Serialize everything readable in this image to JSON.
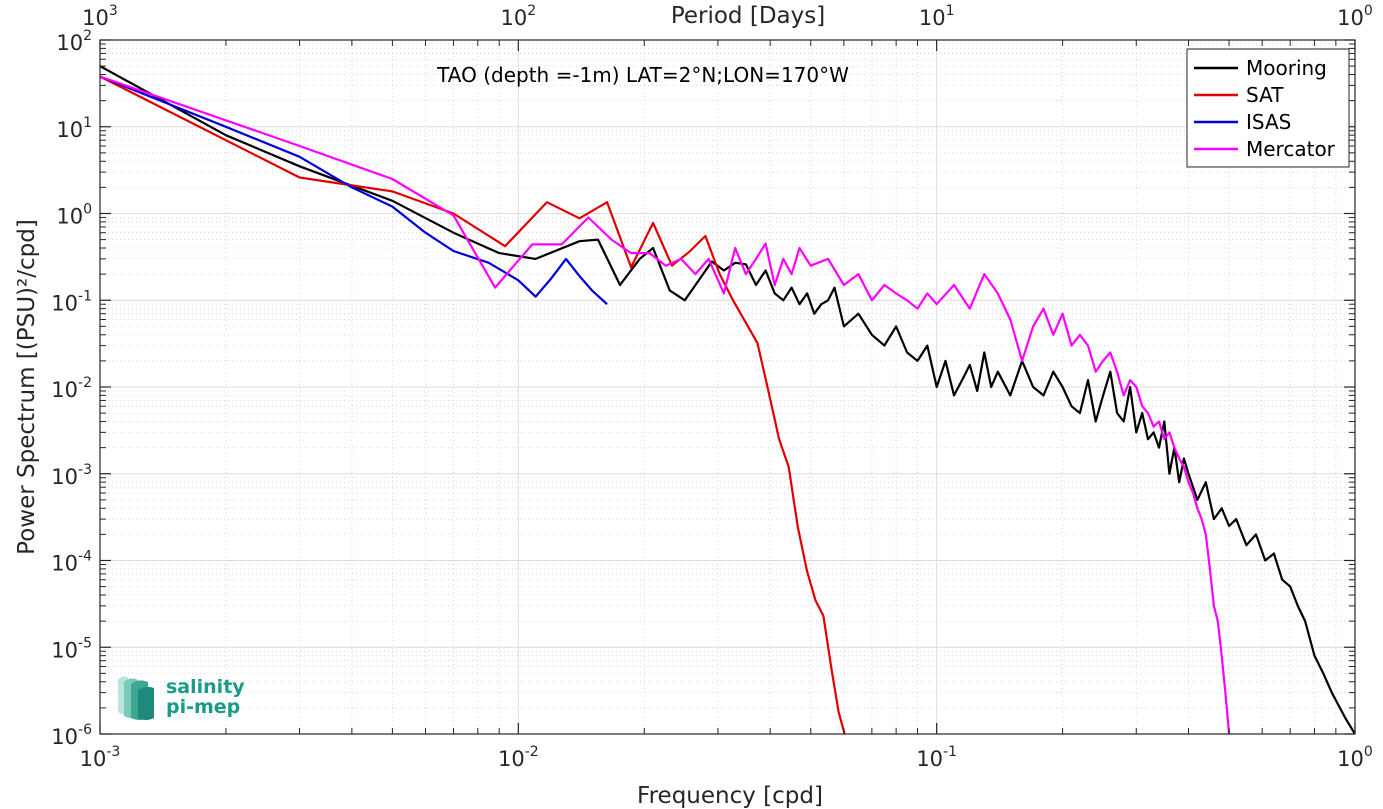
{
  "chart_data": {
    "type": "line",
    "title": "TAO (depth =-1m) LAT=2°N;LON=170°W",
    "xlabel": "Frequency [cpd]",
    "ylabel": "Power Spectrum [(PSU)²/cpd]",
    "top_xlabel": "Period [Days]",
    "xscale": "log",
    "yscale": "log",
    "xlim": [
      0.001,
      1
    ],
    "ylim": [
      1e-06,
      100
    ],
    "grid": true,
    "legend_position": "top-right",
    "x_ticks": [
      {
        "base": "10",
        "exp": "-3"
      },
      {
        "base": "10",
        "exp": "-2"
      },
      {
        "base": "10",
        "exp": "-1"
      },
      {
        "base": "10",
        "exp": "0"
      }
    ],
    "y_ticks": [
      {
        "base": "10",
        "exp": "-6"
      },
      {
        "base": "10",
        "exp": "-5"
      },
      {
        "base": "10",
        "exp": "-4"
      },
      {
        "base": "10",
        "exp": "-3"
      },
      {
        "base": "10",
        "exp": "-2"
      },
      {
        "base": "10",
        "exp": "-1"
      },
      {
        "base": "10",
        "exp": "0"
      },
      {
        "base": "10",
        "exp": "1"
      },
      {
        "base": "10",
        "exp": "2"
      }
    ],
    "top_ticks": [
      {
        "base": "10",
        "exp": "3"
      },
      {
        "base": "10",
        "exp": "2"
      },
      {
        "base": "10",
        "exp": "1"
      },
      {
        "base": "10",
        "exp": "0"
      }
    ],
    "series": [
      {
        "name": "Mooring",
        "color": "#000000",
        "x": [
          0.001,
          0.002,
          0.003,
          0.005,
          0.007,
          0.009,
          0.011,
          0.014,
          0.0155,
          0.0175,
          0.0195,
          0.021,
          0.023,
          0.025,
          0.027,
          0.029,
          0.031,
          0.033,
          0.035,
          0.037,
          0.039,
          0.041,
          0.043,
          0.045,
          0.047,
          0.049,
          0.051,
          0.053,
          0.055,
          0.057,
          0.06,
          0.065,
          0.07,
          0.075,
          0.08,
          0.085,
          0.09,
          0.095,
          0.1,
          0.105,
          0.11,
          0.115,
          0.12,
          0.125,
          0.13,
          0.135,
          0.14,
          0.15,
          0.16,
          0.17,
          0.18,
          0.19,
          0.2,
          0.21,
          0.22,
          0.23,
          0.24,
          0.25,
          0.26,
          0.27,
          0.28,
          0.29,
          0.3,
          0.31,
          0.32,
          0.33,
          0.34,
          0.35,
          0.36,
          0.37,
          0.38,
          0.39,
          0.4,
          0.42,
          0.44,
          0.46,
          0.48,
          0.5,
          0.52,
          0.55,
          0.58,
          0.61,
          0.64,
          0.67,
          0.7,
          0.73,
          0.76,
          0.8,
          0.84,
          0.88,
          0.92,
          0.95,
          1.0
        ],
        "y": [
          50,
          8,
          3.5,
          1.4,
          0.6,
          0.35,
          0.3,
          0.48,
          0.5,
          0.15,
          0.3,
          0.4,
          0.13,
          0.1,
          0.17,
          0.28,
          0.22,
          0.27,
          0.26,
          0.15,
          0.22,
          0.12,
          0.1,
          0.14,
          0.09,
          0.12,
          0.07,
          0.09,
          0.1,
          0.14,
          0.05,
          0.07,
          0.04,
          0.03,
          0.05,
          0.025,
          0.02,
          0.03,
          0.01,
          0.02,
          0.008,
          0.012,
          0.018,
          0.009,
          0.025,
          0.01,
          0.015,
          0.008,
          0.02,
          0.01,
          0.008,
          0.015,
          0.01,
          0.006,
          0.005,
          0.012,
          0.004,
          0.008,
          0.015,
          0.005,
          0.004,
          0.01,
          0.003,
          0.005,
          0.0025,
          0.003,
          0.002,
          0.004,
          0.001,
          0.002,
          0.0008,
          0.0015,
          0.001,
          0.0005,
          0.0008,
          0.0003,
          0.0004,
          0.00025,
          0.0003,
          0.00015,
          0.0002,
          0.0001,
          0.00012,
          6e-05,
          5e-05,
          3e-05,
          2e-05,
          8e-06,
          5e-06,
          3e-06,
          2e-06,
          1.5e-06,
          1e-06
        ]
      },
      {
        "name": "SAT",
        "color": "#e00000",
        "x": [
          0.001,
          0.003,
          0.005,
          0.007,
          0.0093,
          0.0117,
          0.014,
          0.0163,
          0.0186,
          0.021,
          0.0233,
          0.0256,
          0.028,
          0.0303,
          0.0326,
          0.035,
          0.0373,
          0.0396,
          0.042,
          0.0443,
          0.0466,
          0.049,
          0.0513,
          0.0536,
          0.056,
          0.0583,
          0.0606
        ],
        "y": [
          38,
          2.6,
          1.8,
          1.0,
          0.42,
          1.35,
          0.88,
          1.35,
          0.24,
          0.78,
          0.25,
          0.36,
          0.55,
          0.2,
          0.1,
          0.055,
          0.032,
          0.009,
          0.0025,
          0.0012,
          0.00024,
          7.5e-05,
          3.5e-05,
          2.3e-05,
          5.8e-06,
          1.8e-06,
          9e-07
        ]
      },
      {
        "name": "ISAS",
        "color": "#0000d8",
        "x": [
          0.001,
          0.002,
          0.003,
          0.004,
          0.005,
          0.006,
          0.007,
          0.0085,
          0.01,
          0.011,
          0.012,
          0.013,
          0.014,
          0.015,
          0.0163
        ],
        "y": [
          38,
          10,
          4.5,
          2,
          1.2,
          0.6,
          0.37,
          0.27,
          0.17,
          0.11,
          0.18,
          0.3,
          0.19,
          0.13,
          0.09
        ]
      },
      {
        "name": "Mercator",
        "color": "#ff00ff",
        "x": [
          0.001,
          0.003,
          0.005,
          0.007,
          0.0088,
          0.0108,
          0.0127,
          0.0147,
          0.0167,
          0.0186,
          0.0206,
          0.0225,
          0.0245,
          0.0265,
          0.0285,
          0.031,
          0.033,
          0.035,
          0.037,
          0.039,
          0.041,
          0.043,
          0.045,
          0.047,
          0.05,
          0.055,
          0.06,
          0.065,
          0.07,
          0.075,
          0.08,
          0.085,
          0.09,
          0.095,
          0.1,
          0.11,
          0.12,
          0.13,
          0.14,
          0.15,
          0.16,
          0.17,
          0.18,
          0.19,
          0.2,
          0.21,
          0.22,
          0.23,
          0.24,
          0.25,
          0.26,
          0.27,
          0.28,
          0.29,
          0.3,
          0.31,
          0.32,
          0.33,
          0.34,
          0.35,
          0.36,
          0.37,
          0.38,
          0.39,
          0.4,
          0.41,
          0.42,
          0.43,
          0.44,
          0.45,
          0.46,
          0.47,
          0.48,
          0.49,
          0.5
        ],
        "y": [
          38,
          6,
          2.5,
          0.95,
          0.14,
          0.44,
          0.44,
          0.9,
          0.5,
          0.35,
          0.35,
          0.25,
          0.3,
          0.2,
          0.3,
          0.12,
          0.4,
          0.2,
          0.3,
          0.45,
          0.15,
          0.3,
          0.2,
          0.4,
          0.25,
          0.3,
          0.15,
          0.2,
          0.1,
          0.15,
          0.12,
          0.1,
          0.08,
          0.12,
          0.09,
          0.15,
          0.08,
          0.2,
          0.12,
          0.06,
          0.02,
          0.05,
          0.08,
          0.04,
          0.07,
          0.03,
          0.04,
          0.03,
          0.015,
          0.02,
          0.025,
          0.015,
          0.008,
          0.012,
          0.01,
          0.006,
          0.005,
          0.0035,
          0.004,
          0.0025,
          0.003,
          0.002,
          0.0015,
          0.0012,
          0.0008,
          0.0006,
          0.0004,
          0.0003,
          0.0002,
          8e-05,
          3e-05,
          2e-05,
          8e-06,
          3e-06,
          1e-06
        ]
      }
    ]
  },
  "legend": {
    "items": [
      "Mooring",
      "SAT",
      "ISAS",
      "Mercator"
    ]
  },
  "logo": {
    "line1": "salinity",
    "line2": "pi-mep",
    "color": "#1a9b8a"
  }
}
